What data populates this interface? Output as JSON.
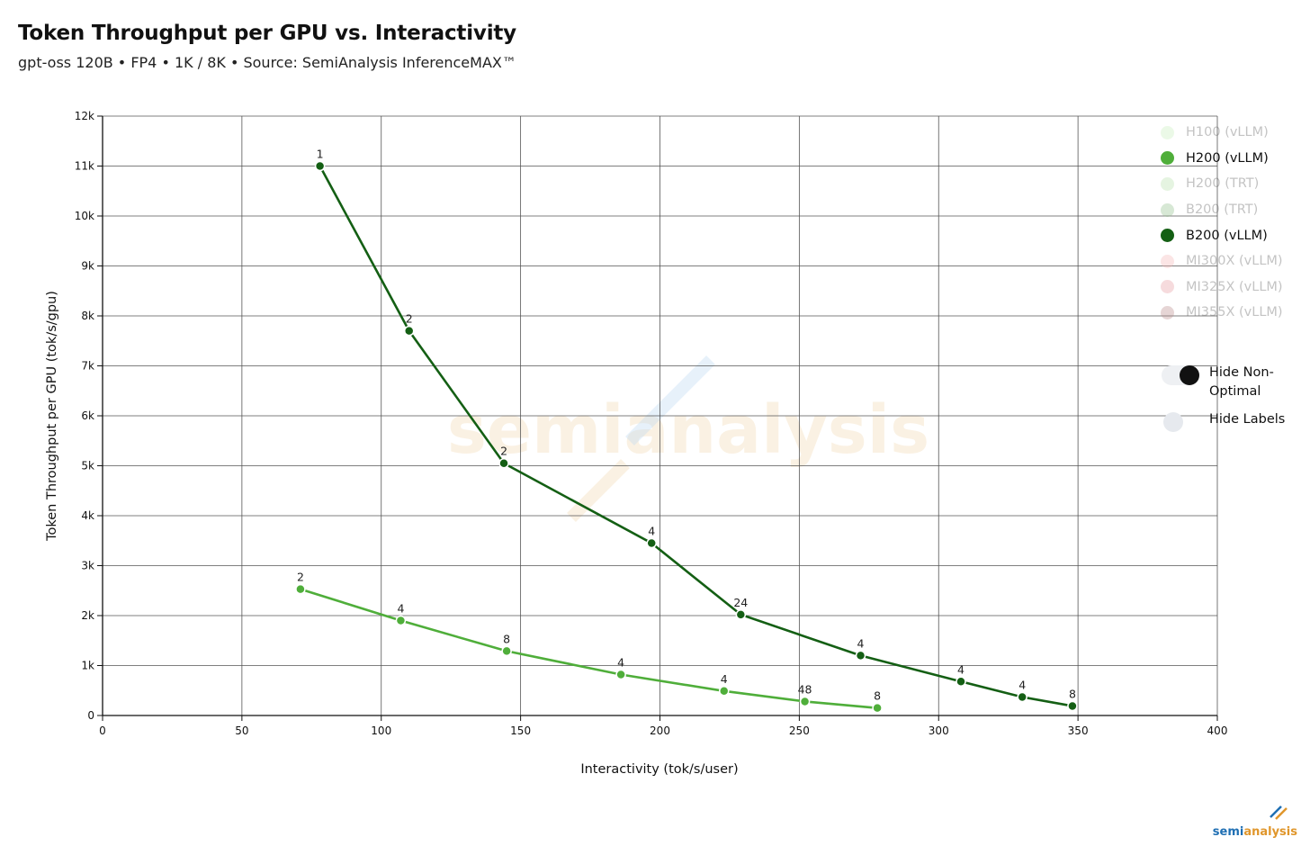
{
  "header": {
    "title": "Token Throughput per GPU vs. Interactivity",
    "subtitle": "gpt-oss 120B • FP4 • 1K / 8K • Source: SemiAnalysis InferenceMAX™"
  },
  "legend": [
    {
      "label": "H100 (vLLM)",
      "color": "#c8f0bd",
      "active": false
    },
    {
      "label": "H200 (vLLM)",
      "color": "#4fae3a",
      "active": true
    },
    {
      "label": "H200 (TRT)",
      "color": "#b6e0aa",
      "active": false
    },
    {
      "label": "B200 (TRT)",
      "color": "#8fbf89",
      "active": false
    },
    {
      "label": "B200 (vLLM)",
      "color": "#145f14",
      "active": true
    },
    {
      "label": "MI300X (vLLM)",
      "color": "#f6b7b7",
      "active": false
    },
    {
      "label": "MI325X (vLLM)",
      "color": "#e79a9f",
      "active": false
    },
    {
      "label": "MI355X (vLLM)",
      "color": "#b98989",
      "active": false
    }
  ],
  "toggles": {
    "hide_non_optimal": {
      "label": "Hide Non-Optimal",
      "on": true
    },
    "hide_labels": {
      "label": "Hide Labels",
      "on": false
    }
  },
  "watermark": "semianalysis",
  "brand": {
    "part1": "semi",
    "part2": "analysis"
  },
  "chart_data": {
    "type": "line",
    "title": "Token Throughput per GPU vs. Interactivity",
    "subtitle": "gpt-oss 120B • FP4 • 1K / 8K • Source: SemiAnalysis InferenceMAX™",
    "xlabel": "Interactivity (tok/s/user)",
    "ylabel": "Token Throughput per GPU (tok/s/gpu)",
    "xlim": [
      0,
      400
    ],
    "ylim": [
      0,
      12000
    ],
    "xticks": [
      0,
      50,
      100,
      150,
      200,
      250,
      300,
      350,
      400
    ],
    "xtick_labels": [
      "0",
      "50",
      "100",
      "150",
      "200",
      "250",
      "300",
      "350",
      "400"
    ],
    "yticks": [
      0,
      1000,
      2000,
      3000,
      4000,
      5000,
      6000,
      7000,
      8000,
      9000,
      10000,
      11000,
      12000
    ],
    "ytick_labels": [
      "0",
      "1k",
      "2k",
      "3k",
      "4k",
      "5k",
      "6k",
      "7k",
      "8k",
      "9k",
      "10k",
      "11k",
      "12k"
    ],
    "grid": true,
    "legend_position": "right",
    "series": [
      {
        "name": "B200 (vLLM)",
        "color": "#145f14",
        "points": [
          {
            "x": 78,
            "y": 11000,
            "label": "1"
          },
          {
            "x": 110,
            "y": 7700,
            "label": "2"
          },
          {
            "x": 144,
            "y": 5050,
            "label": "2"
          },
          {
            "x": 197,
            "y": 3450,
            "label": "4"
          },
          {
            "x": 229,
            "y": 2020,
            "label": "24"
          },
          {
            "x": 272,
            "y": 1200,
            "label": "4"
          },
          {
            "x": 308,
            "y": 680,
            "label": "4"
          },
          {
            "x": 330,
            "y": 370,
            "label": "4"
          },
          {
            "x": 348,
            "y": 190,
            "label": "8"
          }
        ]
      },
      {
        "name": "H200 (vLLM)",
        "color": "#4fae3a",
        "points": [
          {
            "x": 71,
            "y": 2530,
            "label": "2"
          },
          {
            "x": 107,
            "y": 1900,
            "label": "4"
          },
          {
            "x": 145,
            "y": 1290,
            "label": "8"
          },
          {
            "x": 186,
            "y": 820,
            "label": "4"
          },
          {
            "x": 223,
            "y": 490,
            "label": "4"
          },
          {
            "x": 252,
            "y": 280,
            "label": "48"
          },
          {
            "x": 278,
            "y": 150,
            "label": "8"
          }
        ]
      }
    ]
  }
}
